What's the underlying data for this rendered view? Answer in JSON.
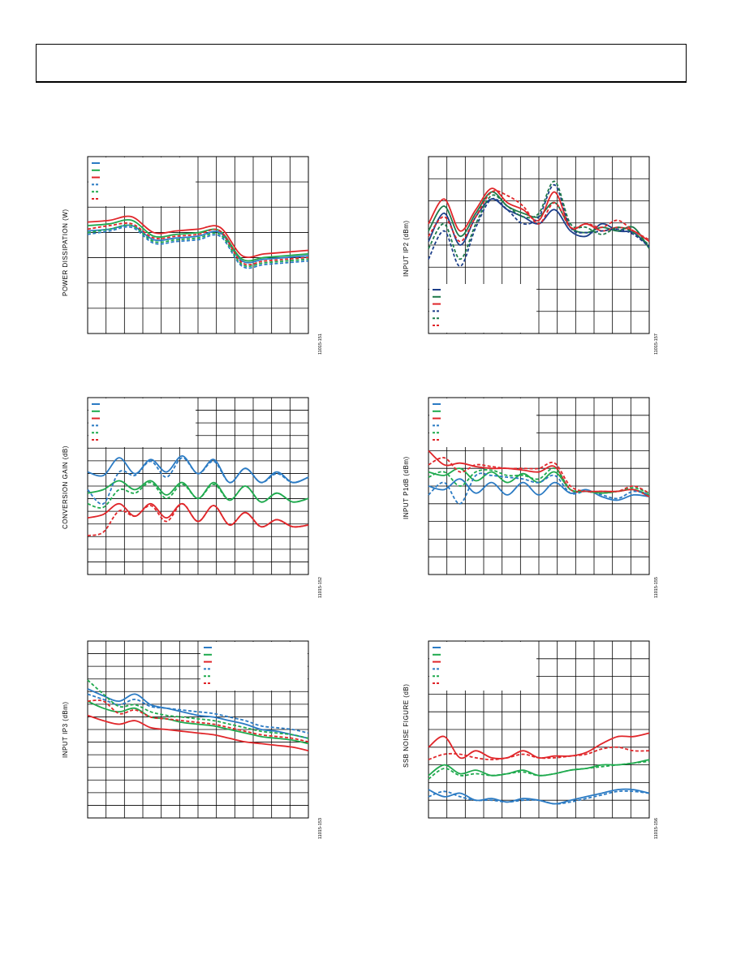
{
  "page": {
    "header_box": ""
  },
  "colors": {
    "blue": "#2b7bc4",
    "green": "#1faa4e",
    "red": "#e0262a",
    "navy": "#1d3f8a",
    "darkgreen": "#1e7a4a"
  },
  "charts": [
    {
      "id": "power",
      "ylabel": "POWER DISSIPATION (W)",
      "fig": "11015-151",
      "chart_data": {
        "type": "line",
        "nx": 12,
        "ny": 7,
        "legend_entries": 6,
        "legend_pos": "top-left",
        "series": [
          {
            "color": "blue",
            "dash": false,
            "y": [
              0.58,
              0.59,
              0.61,
              0.53,
              0.54,
              0.55,
              0.57,
              0.41,
              0.42,
              0.43,
              0.44
            ]
          },
          {
            "color": "green",
            "dash": false,
            "y": [
              0.61,
              0.62,
              0.64,
              0.55,
              0.56,
              0.57,
              0.58,
              0.42,
              0.43,
              0.44,
              0.45
            ]
          },
          {
            "color": "red",
            "dash": false,
            "y": [
              0.63,
              0.64,
              0.66,
              0.57,
              0.58,
              0.59,
              0.6,
              0.44,
              0.45,
              0.46,
              0.47
            ]
          },
          {
            "color": "blue",
            "dash": true,
            "y": [
              0.56,
              0.58,
              0.6,
              0.51,
              0.52,
              0.53,
              0.55,
              0.38,
              0.39,
              0.4,
              0.41
            ]
          },
          {
            "color": "green",
            "dash": true,
            "y": [
              0.57,
              0.59,
              0.61,
              0.52,
              0.53,
              0.54,
              0.56,
              0.39,
              0.4,
              0.41,
              0.42
            ]
          },
          {
            "color": "red",
            "dash": true,
            "y": [
              0.59,
              0.61,
              0.62,
              0.54,
              0.55,
              0.56,
              0.58,
              0.4,
              0.41,
              0.42,
              0.43
            ]
          }
        ]
      }
    },
    {
      "id": "ip2",
      "ylabel": "INPUT IP2 (dBm)",
      "fig": "11015-157",
      "chart_data": {
        "type": "line",
        "nx": 12,
        "ny": 8,
        "legend_entries": 6,
        "legend_pos": "bottom-left",
        "series": [
          {
            "color": "navy",
            "dash": false,
            "y": [
              0.52,
              0.68,
              0.5,
              0.66,
              0.76,
              0.7,
              0.66,
              0.62,
              0.7,
              0.58,
              0.55,
              0.62,
              0.58,
              0.57,
              0.49
            ]
          },
          {
            "color": "darkgreen",
            "dash": false,
            "y": [
              0.58,
              0.72,
              0.55,
              0.68,
              0.8,
              0.72,
              0.68,
              0.66,
              0.74,
              0.6,
              0.57,
              0.6,
              0.58,
              0.6,
              0.48
            ]
          },
          {
            "color": "red",
            "dash": false,
            "y": [
              0.62,
              0.76,
              0.58,
              0.7,
              0.82,
              0.74,
              0.7,
              0.64,
              0.8,
              0.6,
              0.62,
              0.58,
              0.6,
              0.58,
              0.52
            ]
          },
          {
            "color": "navy",
            "dash": true,
            "y": [
              0.42,
              0.58,
              0.38,
              0.6,
              0.76,
              0.7,
              0.62,
              0.66,
              0.84,
              0.6,
              0.57,
              0.58,
              0.59,
              0.56,
              0.49
            ]
          },
          {
            "color": "darkgreen",
            "dash": true,
            "y": [
              0.48,
              0.62,
              0.42,
              0.62,
              0.78,
              0.72,
              0.66,
              0.68,
              0.86,
              0.62,
              0.6,
              0.56,
              0.6,
              0.57,
              0.5
            ]
          },
          {
            "color": "red",
            "dash": true,
            "y": [
              0.55,
              0.66,
              0.52,
              0.66,
              0.8,
              0.78,
              0.72,
              0.62,
              0.74,
              0.6,
              0.62,
              0.6,
              0.64,
              0.58,
              0.53
            ]
          }
        ]
      }
    },
    {
      "id": "gain",
      "ylabel": "CONVERSION GAIN (dB)",
      "fig": "11015-152",
      "chart_data": {
        "type": "line",
        "nx": 12,
        "ny": 14,
        "legend_entries": 6,
        "legend_pos": "top-left",
        "series": [
          {
            "color": "blue",
            "dash": false,
            "y": [
              0.58,
              0.56,
              0.66,
              0.57,
              0.65,
              0.58,
              0.67,
              0.57,
              0.65,
              0.52,
              0.6,
              0.52,
              0.58,
              0.52,
              0.55
            ]
          },
          {
            "color": "green",
            "dash": false,
            "y": [
              0.46,
              0.48,
              0.53,
              0.48,
              0.53,
              0.45,
              0.52,
              0.43,
              0.52,
              0.42,
              0.5,
              0.41,
              0.46,
              0.41,
              0.43
            ]
          },
          {
            "color": "red",
            "dash": false,
            "y": [
              0.32,
              0.34,
              0.4,
              0.33,
              0.4,
              0.32,
              0.4,
              0.3,
              0.39,
              0.28,
              0.35,
              0.27,
              0.31,
              0.27,
              0.28
            ]
          },
          {
            "color": "blue",
            "dash": true,
            "y": [
              0.48,
              0.4,
              0.58,
              0.56,
              0.64,
              0.55,
              0.66,
              0.57,
              0.64,
              0.52,
              0.6,
              0.52,
              0.57,
              0.52,
              0.55
            ]
          },
          {
            "color": "green",
            "dash": true,
            "y": [
              0.4,
              0.38,
              0.48,
              0.46,
              0.52,
              0.43,
              0.51,
              0.43,
              0.51,
              0.42,
              0.5,
              0.41,
              0.46,
              0.41,
              0.43
            ]
          },
          {
            "color": "red",
            "dash": true,
            "y": [
              0.22,
              0.24,
              0.36,
              0.33,
              0.39,
              0.3,
              0.4,
              0.3,
              0.39,
              0.28,
              0.35,
              0.27,
              0.31,
              0.27,
              0.28
            ]
          }
        ]
      }
    },
    {
      "id": "p1db",
      "ylabel": "INPUT P1dB (dBm)",
      "fig": "11015-155",
      "chart_data": {
        "type": "line",
        "nx": 12,
        "ny": 10,
        "legend_entries": 6,
        "legend_pos": "top-left",
        "series": [
          {
            "color": "blue",
            "dash": false,
            "y": [
              0.5,
              0.48,
              0.54,
              0.46,
              0.52,
              0.45,
              0.52,
              0.45,
              0.52,
              0.46,
              0.48,
              0.44,
              0.42,
              0.45,
              0.44
            ]
          },
          {
            "color": "green",
            "dash": false,
            "y": [
              0.58,
              0.56,
              0.6,
              0.53,
              0.58,
              0.52,
              0.57,
              0.52,
              0.58,
              0.48,
              0.47,
              0.46,
              0.47,
              0.48,
              0.45
            ]
          },
          {
            "color": "red",
            "dash": false,
            "y": [
              0.7,
              0.62,
              0.63,
              0.61,
              0.6,
              0.6,
              0.59,
              0.58,
              0.61,
              0.48,
              0.47,
              0.47,
              0.47,
              0.48,
              0.44
            ]
          },
          {
            "color": "blue",
            "dash": true,
            "y": [
              0.45,
              0.52,
              0.4,
              0.56,
              0.56,
              0.55,
              0.54,
              0.52,
              0.56,
              0.46,
              0.47,
              0.45,
              0.43,
              0.47,
              0.45
            ]
          },
          {
            "color": "green",
            "dash": true,
            "y": [
              0.55,
              0.58,
              0.5,
              0.58,
              0.59,
              0.56,
              0.56,
              0.54,
              0.6,
              0.48,
              0.47,
              0.46,
              0.47,
              0.49,
              0.46
            ]
          },
          {
            "color": "red",
            "dash": true,
            "y": [
              0.62,
              0.66,
              0.58,
              0.62,
              0.61,
              0.6,
              0.6,
              0.6,
              0.63,
              0.5,
              0.47,
              0.47,
              0.47,
              0.5,
              0.46
            ]
          }
        ]
      }
    },
    {
      "id": "ip3",
      "ylabel": "INPUT IP3 (dBm)",
      "fig": "11015-153",
      "chart_data": {
        "type": "line",
        "nx": 12,
        "ny": 14,
        "legend_entries": 6,
        "legend_pos": "top-right",
        "series": [
          {
            "color": "blue",
            "dash": false,
            "y": [
              0.73,
              0.69,
              0.66,
              0.7,
              0.64,
              0.62,
              0.6,
              0.58,
              0.57,
              0.55,
              0.53,
              0.5,
              0.49,
              0.47,
              0.45
            ]
          },
          {
            "color": "green",
            "dash": false,
            "y": [
              0.66,
              0.62,
              0.6,
              0.62,
              0.57,
              0.56,
              0.54,
              0.53,
              0.52,
              0.5,
              0.48,
              0.46,
              0.45,
              0.44,
              0.42
            ]
          },
          {
            "color": "red",
            "dash": false,
            "y": [
              0.58,
              0.55,
              0.53,
              0.55,
              0.51,
              0.5,
              0.49,
              0.48,
              0.47,
              0.45,
              0.43,
              0.42,
              0.41,
              0.4,
              0.38
            ]
          },
          {
            "color": "blue",
            "dash": true,
            "y": [
              0.7,
              0.67,
              0.64,
              0.67,
              0.63,
              0.62,
              0.61,
              0.6,
              0.59,
              0.57,
              0.55,
              0.52,
              0.51,
              0.5,
              0.48
            ]
          },
          {
            "color": "green",
            "dash": true,
            "y": [
              0.78,
              0.7,
              0.63,
              0.64,
              0.6,
              0.58,
              0.57,
              0.56,
              0.55,
              0.53,
              0.51,
              0.49,
              0.48,
              0.47,
              0.45
            ]
          },
          {
            "color": "red",
            "dash": true,
            "y": [
              0.66,
              0.66,
              0.59,
              0.61,
              0.57,
              0.56,
              0.55,
              0.54,
              0.53,
              0.51,
              0.49,
              0.47,
              0.46,
              0.45,
              0.43
            ]
          }
        ]
      }
    },
    {
      "id": "nf",
      "ylabel": "SSB NOISE FIGURE (dB)",
      "fig": "11015-156",
      "chart_data": {
        "type": "line",
        "nx": 12,
        "ny": 10,
        "legend_entries": 6,
        "legend_pos": "top-left",
        "series": [
          {
            "color": "blue",
            "dash": false,
            "y": [
              0.16,
              0.12,
              0.14,
              0.1,
              0.11,
              0.09,
              0.11,
              0.1,
              0.08,
              0.1,
              0.12,
              0.14,
              0.16,
              0.16,
              0.14
            ]
          },
          {
            "color": "green",
            "dash": false,
            "y": [
              0.24,
              0.3,
              0.25,
              0.27,
              0.24,
              0.25,
              0.27,
              0.24,
              0.25,
              0.27,
              0.28,
              0.3,
              0.3,
              0.31,
              0.33
            ]
          },
          {
            "color": "red",
            "dash": false,
            "y": [
              0.4,
              0.46,
              0.34,
              0.38,
              0.34,
              0.34,
              0.38,
              0.34,
              0.35,
              0.35,
              0.37,
              0.42,
              0.46,
              0.46,
              0.48
            ]
          },
          {
            "color": "blue",
            "dash": true,
            "y": [
              0.12,
              0.15,
              0.12,
              0.1,
              0.1,
              0.09,
              0.1,
              0.1,
              0.08,
              0.09,
              0.11,
              0.13,
              0.15,
              0.15,
              0.14
            ]
          },
          {
            "color": "green",
            "dash": true,
            "y": [
              0.22,
              0.28,
              0.24,
              0.25,
              0.24,
              0.25,
              0.26,
              0.24,
              0.25,
              0.27,
              0.28,
              0.29,
              0.3,
              0.31,
              0.32
            ]
          },
          {
            "color": "red",
            "dash": true,
            "y": [
              0.33,
              0.36,
              0.36,
              0.34,
              0.33,
              0.34,
              0.36,
              0.34,
              0.34,
              0.35,
              0.36,
              0.39,
              0.4,
              0.38,
              0.38
            ]
          }
        ]
      }
    }
  ]
}
